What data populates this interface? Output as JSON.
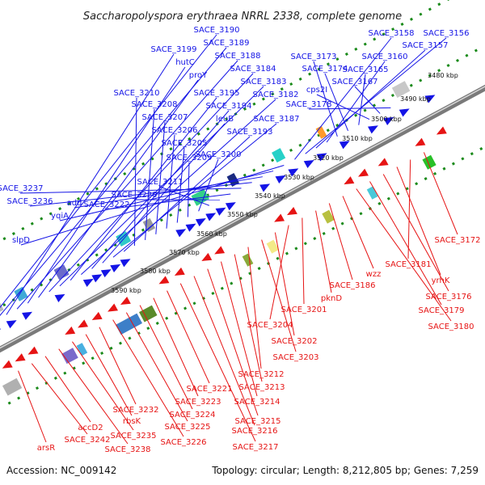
{
  "title": "Saccharopolyspora erythraea NRRL 2338, complete genome",
  "accession": "Accession: NC_009142",
  "summary": "Topology: circular; Length: 8,212,805 bp; Genes: 7,259",
  "colors": {
    "forward": "#1414e6",
    "reverse": "#e61414",
    "backbone": "#7a7a7a",
    "tick": "#1a8a1a"
  },
  "scale": {
    "ticks": [
      "3480 kbp",
      "3490 kbp",
      "3500 kbp",
      "3510 kbp",
      "3520 kbp",
      "3530 kbp",
      "3540 kbp",
      "3550 kbp",
      "3560 kbp",
      "3570 kbp",
      "3580 kbp",
      "3590 kbp"
    ]
  },
  "forward_genes": [
    "SACE_3190",
    "SACE_3189",
    "SACE_3199",
    "SACE_3188",
    "hutC",
    "proY",
    "SACE_3184",
    "SACE_3183",
    "SACE_3195",
    "SACE_3182",
    "SACE_3194",
    "leuB",
    "SACE_3187",
    "SACE_3193",
    "SACE_3210",
    "SACE_3208",
    "SACE_3207",
    "SACE_3206",
    "SACE_3205",
    "SACE_3209",
    "SACE_3200",
    "SACE_3211",
    "SACE_3220",
    "SACE_3222",
    "SACE_3237",
    "SACE_3236",
    "add",
    "yqiA",
    "slpD",
    "SACE_3158",
    "SACE_3156",
    "SACE_3157",
    "SACE_3160",
    "SACE_3173",
    "SACE_3174",
    "SACE_3165",
    "cps2I",
    "SACE_3167",
    "SACE_3178"
  ],
  "reverse_genes": [
    "SACE_3172",
    "SACE_3181",
    "yrhK",
    "SACE_3176",
    "SACE_3179",
    "SACE_3180",
    "wzz",
    "SACE_3186",
    "pknD",
    "SACE_3201",
    "SACE_3204",
    "SACE_3202",
    "SACE_3203",
    "SACE_3212",
    "SACE_3213",
    "SACE_3214",
    "SACE_3215",
    "SACE_3216",
    "SACE_3217",
    "SACE_3221",
    "SACE_3223",
    "SACE_3224",
    "SACE_3225",
    "SACE_3226",
    "SACE_3232",
    "rbsK",
    "SACE_3235",
    "SACE_3238",
    "accD2",
    "SACE_3242",
    "arsR"
  ]
}
